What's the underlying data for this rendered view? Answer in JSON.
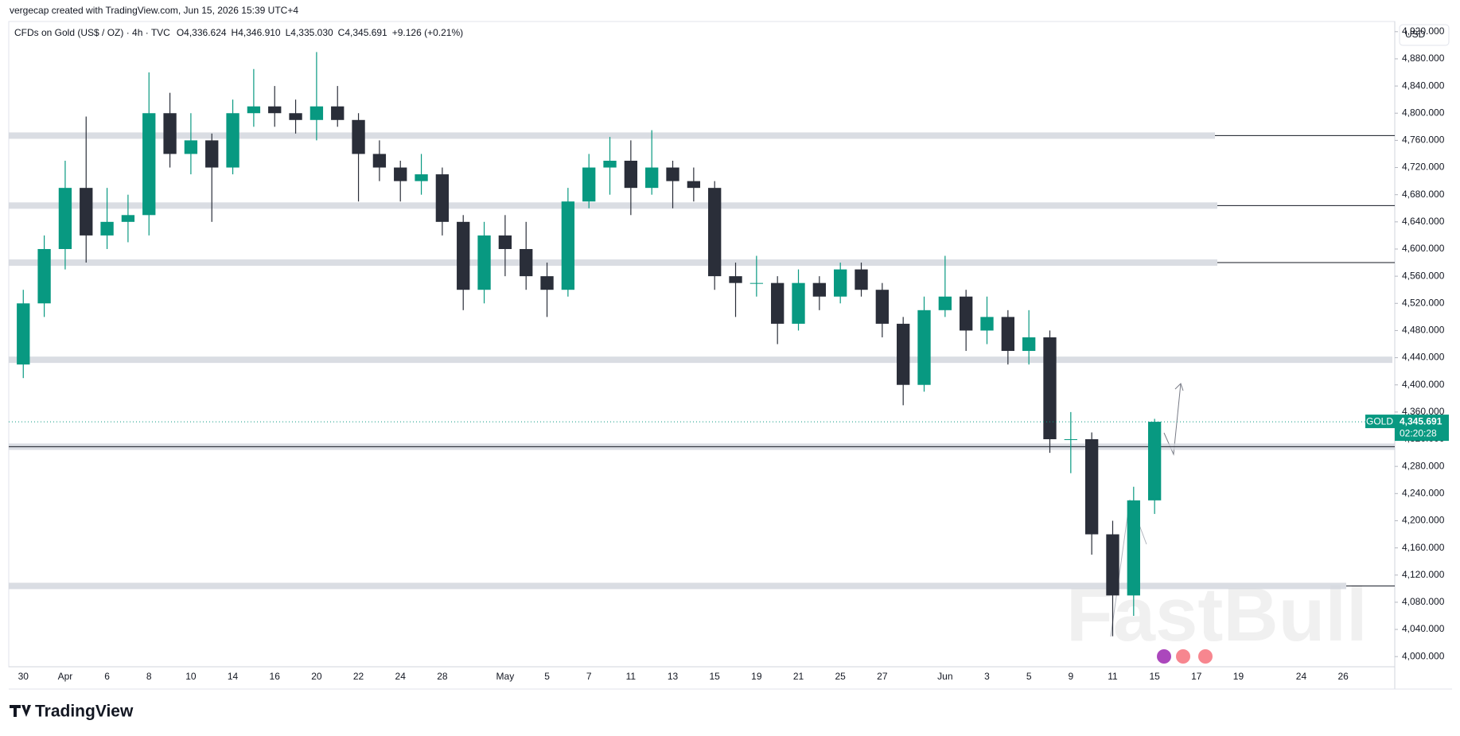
{
  "chart_data": {
    "type": "candlestick",
    "credit": "vergecap created with TradingView.com, Jun 15, 2026 15:39 UTC+4",
    "title": "CFDs on Gold (US$ / OZ) · 4h · TVC",
    "legend_values": [
      "O4,336.624",
      "H4,346.910",
      "L4,335.030",
      "C4,345.691",
      "+9.126 (+0.21%)"
    ],
    "currency": "USD",
    "symbol": "GOLD",
    "last_price": {
      "value": 4345.691,
      "label": "4,345.691"
    },
    "countdown": "02:20:28",
    "brand": "TradingView",
    "watermark": "FastBull",
    "up_color": "#089981",
    "down_color": "#2a2e39",
    "categories": [
      "30",
      null,
      "Apr",
      null,
      "6",
      null,
      "8",
      null,
      "10",
      null,
      "14",
      null,
      "16",
      null,
      "20",
      null,
      "22",
      null,
      "24",
      null,
      "28",
      null,
      null,
      "May",
      null,
      "5",
      null,
      "7",
      null,
      "11",
      null,
      "13",
      null,
      "15",
      null,
      "19",
      null,
      "21",
      null,
      "25",
      null,
      "27",
      null,
      null,
      "Jun",
      null,
      "3",
      null,
      "5",
      null,
      "9",
      null,
      "11",
      null,
      "15"
    ],
    "future_categories": [
      null,
      "17",
      null,
      "19",
      null,
      null,
      "24",
      null,
      "26"
    ],
    "open": [
      4430,
      4520,
      4600,
      4690,
      4620,
      4640,
      4650,
      4800,
      4740,
      4760,
      4720,
      4800,
      4810,
      4800,
      4790,
      4810,
      4790,
      4740,
      4720,
      4700,
      4710,
      4640,
      4540,
      4620,
      4600,
      4560,
      4540,
      4670,
      4720,
      4730,
      4690,
      4720,
      4700,
      4690,
      4560,
      4550,
      4550,
      4490,
      4550,
      4530,
      4570,
      4540,
      4490,
      4400,
      4510,
      4530,
      4480,
      4500,
      4450,
      4470,
      4320,
      4320,
      4180,
      4090,
      4230
    ],
    "high": [
      4540,
      4620,
      4730,
      4795,
      4690,
      4680,
      4860,
      4830,
      4800,
      4770,
      4820,
      4865,
      4840,
      4820,
      4890,
      4840,
      4800,
      4760,
      4730,
      4740,
      4720,
      4650,
      4640,
      4650,
      4640,
      4580,
      4690,
      4740,
      4765,
      4760,
      4775,
      4730,
      4720,
      4700,
      4580,
      4590,
      4560,
      4570,
      4560,
      4580,
      4580,
      4550,
      4500,
      4530,
      4590,
      4540,
      4530,
      4510,
      4510,
      4480,
      4360,
      4330,
      4200,
      4250,
      4350
    ],
    "low": [
      4410,
      4500,
      4570,
      4580,
      4600,
      4610,
      4620,
      4720,
      4710,
      4640,
      4710,
      4780,
      4780,
      4770,
      4760,
      4780,
      4670,
      4700,
      4670,
      4680,
      4620,
      4510,
      4520,
      4560,
      4540,
      4500,
      4530,
      4660,
      4680,
      4650,
      4680,
      4660,
      4670,
      4540,
      4500,
      4530,
      4460,
      4480,
      4510,
      4520,
      4530,
      4470,
      4370,
      4390,
      4500,
      4450,
      4460,
      4430,
      4430,
      4300,
      4270,
      4150,
      4030,
      4060,
      4210
    ],
    "close": [
      4520,
      4600,
      4690,
      4620,
      4640,
      4650,
      4800,
      4740,
      4760,
      4720,
      4800,
      4810,
      4800,
      4790,
      4810,
      4790,
      4740,
      4720,
      4700,
      4710,
      4640,
      4540,
      4620,
      4600,
      4560,
      4540,
      4670,
      4720,
      4730,
      4690,
      4720,
      4700,
      4690,
      4560,
      4550,
      4550,
      4490,
      4550,
      4530,
      4570,
      4540,
      4490,
      4400,
      4510,
      4530,
      4480,
      4500,
      4450,
      4470,
      4320,
      4320,
      4180,
      4090,
      4230,
      4345.691
    ],
    "levels": [
      4767,
      4664,
      4580,
      4437,
      4309,
      4104
    ],
    "ylim": [
      3985,
      4935
    ],
    "yticks": [
      {
        "value": 4000,
        "label": "4,000.000"
      },
      {
        "value": 4040,
        "label": "4,040.000"
      },
      {
        "value": 4080,
        "label": "4,080.000"
      },
      {
        "value": 4120,
        "label": "4,120.000"
      },
      {
        "value": 4160,
        "label": "4,160.000"
      },
      {
        "value": 4200,
        "label": "4,200.000"
      },
      {
        "value": 4240,
        "label": "4,240.000"
      },
      {
        "value": 4280,
        "label": "4,280.000"
      },
      {
        "value": 4320,
        "label": "4,320.000"
      },
      {
        "value": 4360,
        "label": "4,360.000"
      },
      {
        "value": 4400,
        "label": "4,400.000"
      },
      {
        "value": 4440,
        "label": "4,440.000"
      },
      {
        "value": 4480,
        "label": "4,480.000"
      },
      {
        "value": 4520,
        "label": "4,520.000"
      },
      {
        "value": 4560,
        "label": "4,560.000"
      },
      {
        "value": 4600,
        "label": "4,600.000"
      },
      {
        "value": 4640,
        "label": "4,640.000"
      },
      {
        "value": 4680,
        "label": "4,680.000"
      },
      {
        "value": 4720,
        "label": "4,720.000"
      },
      {
        "value": 4760,
        "label": "4,760.000"
      },
      {
        "value": 4800,
        "label": "4,800.000"
      },
      {
        "value": 4840,
        "label": "4,840.000"
      },
      {
        "value": 4880,
        "label": "4,880.000"
      },
      {
        "value": 4920,
        "label": "4,920.000"
      }
    ]
  }
}
